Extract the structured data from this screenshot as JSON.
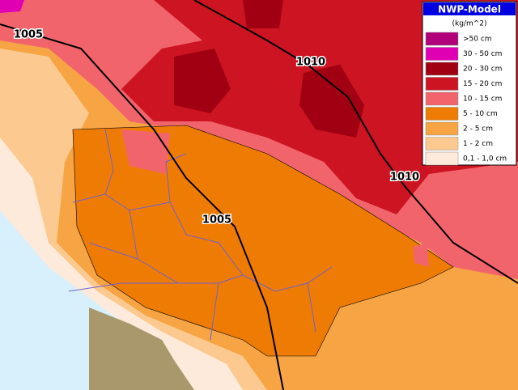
{
  "legend": {
    "title": "NWP-Model",
    "unit": "(kg/m^2)",
    "items": [
      {
        "label": ">50 cm",
        "color": "#b0007a"
      },
      {
        "label": "30 - 50 cm",
        "color": "#e000b4"
      },
      {
        "label": "20 - 30 cm",
        "color": "#a00012"
      },
      {
        "label": "15 - 20 cm",
        "color": "#cc1422"
      },
      {
        "label": "10 - 15 cm",
        "color": "#f2646c"
      },
      {
        "label": "5 - 10 cm",
        "color": "#ee7c04"
      },
      {
        "label": "2 - 5 cm",
        "color": "#f7a444"
      },
      {
        "label": "1 - 2 cm",
        "color": "#fcca90"
      },
      {
        "label": "0,1 - 1,0 cm",
        "color": "#fdeada"
      }
    ]
  },
  "isobar_labels": [
    "1005",
    "1005",
    "1010",
    "1010"
  ]
}
